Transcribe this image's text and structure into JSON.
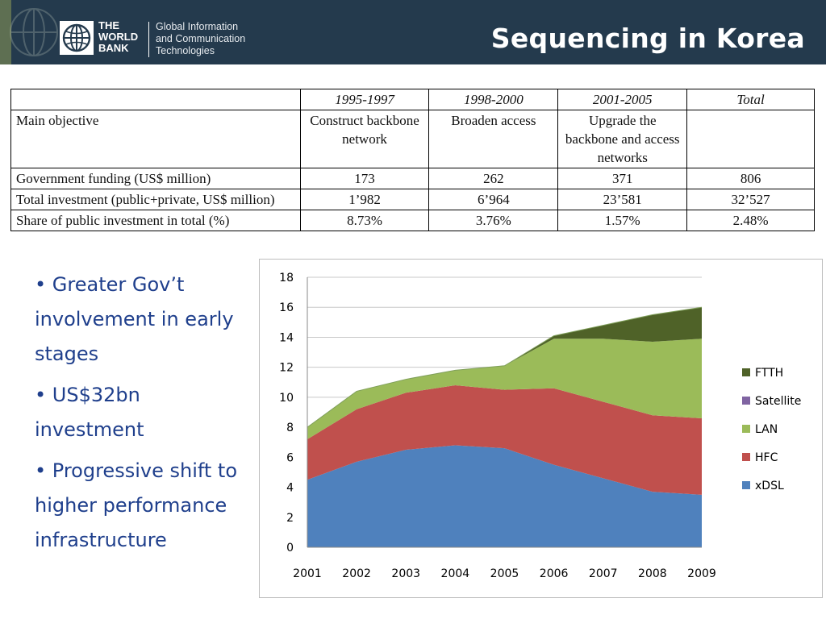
{
  "header": {
    "logo_line1": "THE",
    "logo_line2": "WORLD",
    "logo_line3": "BANK",
    "sub_line1": "Global Information",
    "sub_line2": "and Communication",
    "sub_line3": "Technologies",
    "title": "Sequencing in Korea"
  },
  "table": {
    "columns": [
      "",
      "1995-1997",
      "1998-2000",
      "2001-2005",
      "Total"
    ],
    "rows": [
      {
        "label": "Main objective",
        "cells": [
          "Construct backbone network",
          "Broaden access",
          "Upgrade the backbone and access networks",
          ""
        ]
      },
      {
        "label": "Government funding (US$ million)",
        "cells": [
          "173",
          "262",
          "371",
          "806"
        ]
      },
      {
        "label": "Total investment (public+private, US$ million)",
        "cells": [
          "1’982",
          "6’964",
          "23’581",
          "32’527"
        ]
      },
      {
        "label": "Share of public investment in total (%)",
        "cells": [
          "8.73%",
          "3.76%",
          "1.57%",
          "2.48%"
        ]
      }
    ]
  },
  "bullets": [
    "• Greater Gov’t involvement in early stages",
    "• US$32bn investment",
    "• Progressive shift to higher performance infrastructure"
  ],
  "colors": {
    "xDSL": "#4f81bd",
    "HFC": "#c0504d",
    "LAN": "#9bbb59",
    "Satellite": "#8064a2",
    "FTTH": "#4f6228",
    "header_bg": "#243a4d",
    "bullet_text": "#1f3f8c"
  },
  "chart_data": {
    "type": "area",
    "stacked": true,
    "categories": [
      "2001",
      "2002",
      "2003",
      "2004",
      "2005",
      "2006",
      "2007",
      "2008",
      "2009"
    ],
    "ylim": [
      0,
      18
    ],
    "yticks": [
      "0",
      "2",
      "4",
      "6",
      "8",
      "10",
      "12",
      "14",
      "16",
      "18"
    ],
    "grid": true,
    "legend_position": "right",
    "series": [
      {
        "name": "xDSL",
        "values": [
          4.5,
          5.7,
          6.5,
          6.8,
          6.6,
          5.5,
          4.6,
          3.7,
          3.5
        ]
      },
      {
        "name": "HFC",
        "values": [
          2.7,
          3.5,
          3.8,
          4.0,
          3.9,
          5.1,
          5.1,
          5.1,
          5.1
        ]
      },
      {
        "name": "LAN",
        "values": [
          0.8,
          1.2,
          0.9,
          1.0,
          1.6,
          3.3,
          4.2,
          4.9,
          5.3
        ]
      },
      {
        "name": "Satellite",
        "values": [
          0.0,
          0.0,
          0.0,
          0.0,
          0.0,
          0.0,
          0.0,
          0.0,
          0.0
        ]
      },
      {
        "name": "FTTH",
        "values": [
          0.0,
          0.0,
          0.0,
          0.0,
          0.0,
          0.2,
          0.9,
          1.8,
          2.1
        ]
      }
    ],
    "legend_order": [
      "FTTH",
      "Satellite",
      "LAN",
      "HFC",
      "xDSL"
    ]
  }
}
